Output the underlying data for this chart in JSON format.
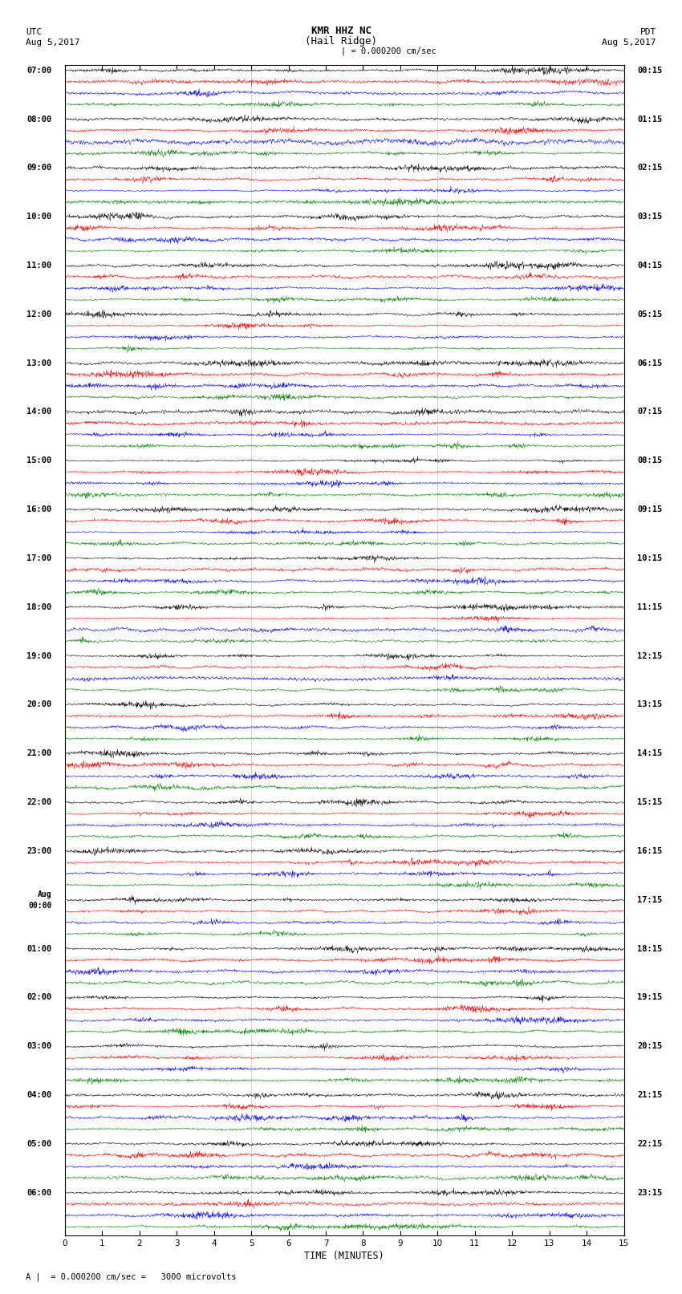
{
  "title_line1": "KMR HHZ NC",
  "title_line2": "(Hail Ridge)",
  "label_left_line1": "UTC",
  "label_left_line2": "Aug 5,2017",
  "label_right_line1": "PDT",
  "label_right_line2": "Aug 5,2017",
  "scale_text": "| = 0.000200 cm/sec",
  "scale_label_bottom": "A |  = 0.000200 cm/sec =   3000 microvolts",
  "xlabel": "TIME (MINUTES)",
  "xlim": [
    0,
    15
  ],
  "xticks": [
    0,
    1,
    2,
    3,
    4,
    5,
    6,
    7,
    8,
    9,
    10,
    11,
    12,
    13,
    14,
    15
  ],
  "background_color": "#ffffff",
  "trace_colors": [
    "#000000",
    "#ff0000",
    "#0000ff",
    "#008000"
  ],
  "rows_per_group": 4,
  "num_groups": 24,
  "figsize": [
    8.5,
    16.13
  ],
  "dpi": 100,
  "left_times_utc": [
    "07:00",
    "08:00",
    "09:00",
    "10:00",
    "11:00",
    "12:00",
    "13:00",
    "14:00",
    "15:00",
    "16:00",
    "17:00",
    "18:00",
    "19:00",
    "20:00",
    "21:00",
    "22:00",
    "23:00",
    "Aug\n00:00",
    "01:00",
    "02:00",
    "03:00",
    "04:00",
    "05:00",
    "06:00"
  ],
  "right_times_pdt": [
    "00:15",
    "01:15",
    "02:15",
    "03:15",
    "04:15",
    "05:15",
    "06:15",
    "07:15",
    "08:15",
    "09:15",
    "10:15",
    "11:15",
    "12:15",
    "13:15",
    "14:15",
    "15:15",
    "16:15",
    "17:15",
    "18:15",
    "19:15",
    "20:15",
    "21:15",
    "22:15",
    "23:15"
  ]
}
